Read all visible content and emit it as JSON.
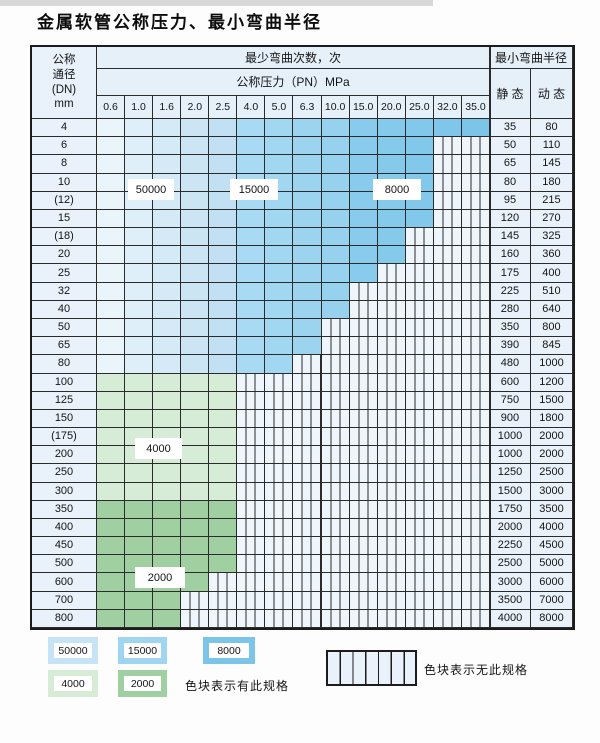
{
  "title": "金属软管公称压力、最小弯曲半径",
  "table": {
    "dn_header_lines": [
      "公称",
      "通径",
      "(DN)",
      "mm"
    ],
    "bend_header": "最少弯曲次数，次",
    "radius_header": "最小弯曲半径",
    "pn_header": "公称压力（PN）MPa",
    "static_header": "静 态",
    "dynamic_header": "动 态",
    "pressures": [
      "0.6",
      "1.0",
      "1.6",
      "2.0",
      "2.5",
      "4.0",
      "5.0",
      "6.3",
      "10.0",
      "15.0",
      "20.0",
      "25.0",
      "32.0",
      "35.0"
    ],
    "bend_count_labels": {
      "l50000": "50000",
      "l15000": "15000",
      "l8000": "8000",
      "l4000": "4000",
      "l2000": "2000"
    },
    "bend_zones": {
      "blue_by_pressure_column": {
        "50000": [
          "0.6",
          "2.5"
        ],
        "15000": [
          "4.0",
          "10.0"
        ],
        "8000": [
          "15.0",
          "35.0"
        ]
      },
      "green_by_dn_row": {
        "4000": [
          "100",
          "300"
        ],
        "2000": [
          "350",
          "800"
        ]
      }
    },
    "rows": [
      {
        "dn": "4",
        "static": "35",
        "dynamic": "80",
        "fill": "blue",
        "last": "35.0"
      },
      {
        "dn": "6",
        "static": "50",
        "dynamic": "110",
        "fill": "blue",
        "last": "25.0"
      },
      {
        "dn": "8",
        "static": "65",
        "dynamic": "145",
        "fill": "blue",
        "last": "25.0"
      },
      {
        "dn": "10",
        "static": "80",
        "dynamic": "180",
        "fill": "blue",
        "last": "25.0"
      },
      {
        "dn": "(12)",
        "static": "95",
        "dynamic": "215",
        "fill": "blue",
        "last": "25.0"
      },
      {
        "dn": "15",
        "static": "120",
        "dynamic": "270",
        "fill": "blue",
        "last": "25.0"
      },
      {
        "dn": "(18)",
        "static": "145",
        "dynamic": "325",
        "fill": "blue",
        "last": "20.0"
      },
      {
        "dn": "20",
        "static": "160",
        "dynamic": "360",
        "fill": "blue",
        "last": "20.0"
      },
      {
        "dn": "25",
        "static": "175",
        "dynamic": "400",
        "fill": "blue",
        "last": "15.0"
      },
      {
        "dn": "32",
        "static": "225",
        "dynamic": "510",
        "fill": "blue",
        "last": "10.0"
      },
      {
        "dn": "40",
        "static": "280",
        "dynamic": "640",
        "fill": "blue",
        "last": "10.0"
      },
      {
        "dn": "50",
        "static": "350",
        "dynamic": "800",
        "fill": "blue",
        "last": "6.3"
      },
      {
        "dn": "65",
        "static": "390",
        "dynamic": "845",
        "fill": "blue",
        "last": "6.3"
      },
      {
        "dn": "80",
        "static": "480",
        "dynamic": "1000",
        "fill": "blue",
        "last": "5.0"
      },
      {
        "dn": "100",
        "static": "600",
        "dynamic": "1200",
        "fill": "green_light",
        "last": "2.5"
      },
      {
        "dn": "125",
        "static": "750",
        "dynamic": "1500",
        "fill": "green_light",
        "last": "2.5"
      },
      {
        "dn": "150",
        "static": "900",
        "dynamic": "1800",
        "fill": "green_light",
        "last": "2.5"
      },
      {
        "dn": "(175)",
        "static": "1000",
        "dynamic": "2000",
        "fill": "green_light",
        "last": "2.5"
      },
      {
        "dn": "200",
        "static": "1000",
        "dynamic": "2000",
        "fill": "green_light",
        "last": "2.5"
      },
      {
        "dn": "250",
        "static": "1250",
        "dynamic": "2500",
        "fill": "green_light",
        "last": "2.5"
      },
      {
        "dn": "300",
        "static": "1500",
        "dynamic": "3000",
        "fill": "green_light",
        "last": "2.5"
      },
      {
        "dn": "350",
        "static": "1750",
        "dynamic": "3500",
        "fill": "green_medium",
        "last": "2.5"
      },
      {
        "dn": "400",
        "static": "2000",
        "dynamic": "4000",
        "fill": "green_medium",
        "last": "2.5"
      },
      {
        "dn": "450",
        "static": "2250",
        "dynamic": "4500",
        "fill": "green_medium",
        "last": "2.5"
      },
      {
        "dn": "500",
        "static": "2500",
        "dynamic": "5000",
        "fill": "green_medium",
        "last": "2.5"
      },
      {
        "dn": "600",
        "static": "3000",
        "dynamic": "6000",
        "fill": "green_medium",
        "last": "2.0"
      },
      {
        "dn": "700",
        "static": "3500",
        "dynamic": "7000",
        "fill": "green_medium",
        "last": "1.6"
      },
      {
        "dn": "800",
        "static": "4000",
        "dynamic": "8000",
        "fill": "green_medium",
        "last": "1.6"
      }
    ]
  },
  "legend": {
    "items": [
      {
        "value": "50000",
        "color_key": "legend_blue_light"
      },
      {
        "value": "15000",
        "color_key": "legend_blue_mid"
      },
      {
        "value": "8000",
        "color_key": "legend_blue_dark"
      },
      {
        "value": "4000",
        "color_key": "green_light"
      },
      {
        "value": "2000",
        "color_key": "green_medium"
      }
    ],
    "has_spec_note": "色块表示有此规格",
    "no_spec_note": "色块表示无此规格"
  },
  "palette": {
    "blue_columns": [
      "#e9f4fb",
      "#dfeffa",
      "#d5eaf7",
      "#cbe5f5",
      "#c1e0f3",
      "#a8daf3",
      "#a2d7f1",
      "#9cd4ef",
      "#96d1ee",
      "#89cbec",
      "#85c9eb",
      "#82c8ea",
      "#7fc6ea",
      "#7cc5e9"
    ],
    "green_light": "#d7ecd6",
    "green_medium": "#a0d0a2",
    "legend_blue_light": "#c7e3f6",
    "legend_blue_mid": "#9fd5f0",
    "legend_blue_dark": "#7cc5e9",
    "header_bg": "#e6f0f9",
    "label_col_bg": "#e9f2fa",
    "stripe_bg": "#eef5fb",
    "grid_line": "#2b2b2b"
  }
}
